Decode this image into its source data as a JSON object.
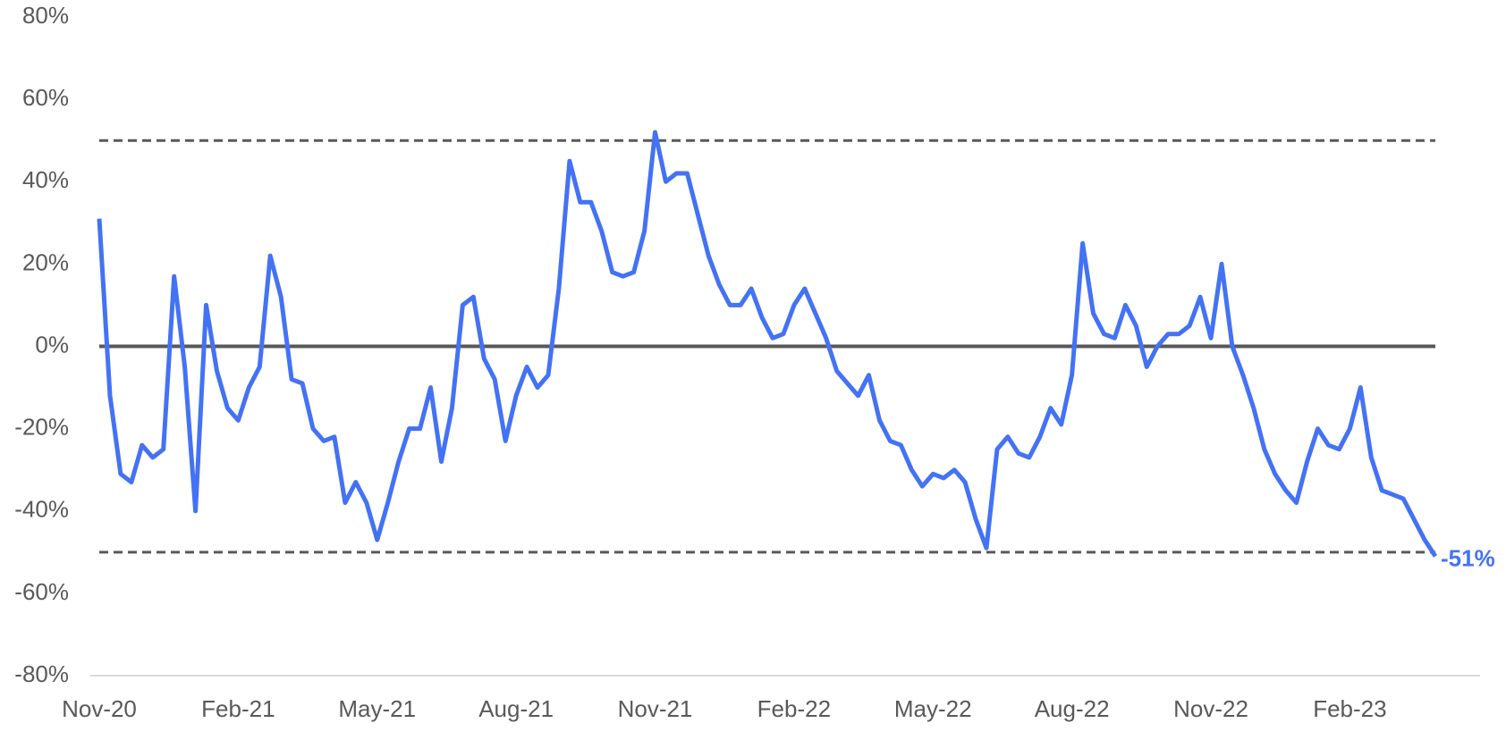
{
  "chart_data": {
    "type": "line",
    "categories": [
      "Nov-20",
      null,
      null,
      null,
      null,
      null,
      null,
      null,
      null,
      null,
      null,
      null,
      null,
      "Feb-21",
      null,
      null,
      null,
      null,
      null,
      null,
      null,
      null,
      null,
      null,
      null,
      null,
      "May-21",
      null,
      null,
      null,
      null,
      null,
      null,
      null,
      null,
      null,
      null,
      null,
      null,
      "Aug-21",
      null,
      null,
      null,
      null,
      null,
      null,
      null,
      null,
      null,
      null,
      null,
      null,
      "Nov-21",
      null,
      null,
      null,
      null,
      null,
      null,
      null,
      null,
      null,
      null,
      null,
      null,
      "Feb-22",
      null,
      null,
      null,
      null,
      null,
      null,
      null,
      null,
      null,
      null,
      null,
      null,
      "May-22",
      null,
      null,
      null,
      null,
      null,
      null,
      null,
      null,
      null,
      null,
      null,
      null,
      "Aug-22",
      null,
      null,
      null,
      null,
      null,
      null,
      null,
      null,
      null,
      null,
      null,
      null,
      "Nov-22",
      null,
      null,
      null,
      null,
      null,
      null,
      null,
      null,
      null,
      null,
      null,
      null,
      "Feb-23",
      null,
      null,
      null,
      null,
      null,
      null,
      null,
      null
    ],
    "values": [
      31,
      -12,
      -31,
      -33,
      -24,
      -27,
      -25,
      17,
      -5,
      -40,
      10,
      -6,
      -15,
      -18,
      -10,
      -5,
      22,
      12,
      -8,
      -9,
      -20,
      -23,
      -22,
      -38,
      -33,
      -38,
      -47,
      -38,
      -28,
      -20,
      -20,
      -10,
      -28,
      -15,
      10,
      12,
      -3,
      -8,
      -23,
      -12,
      -5,
      -10,
      -7,
      14,
      45,
      35,
      35,
      28,
      18,
      17,
      18,
      28,
      52,
      40,
      42,
      42,
      32,
      22,
      15,
      10,
      10,
      14,
      7,
      2,
      3,
      10,
      14,
      8,
      2,
      -6,
      -9,
      -12,
      -7,
      -18,
      -23,
      -24,
      -30,
      -34,
      -31,
      -32,
      -30,
      -33,
      -42,
      -49,
      -25,
      -22,
      -26,
      -27,
      -22,
      -15,
      -19,
      -7,
      25,
      8,
      3,
      2,
      10,
      5,
      -5,
      0,
      3,
      3,
      5,
      12,
      2,
      20,
      0,
      -7,
      -15,
      -25,
      -31,
      -35,
      -38,
      -28,
      -20,
      -24,
      -25,
      -20,
      -10,
      -27,
      -35,
      -36,
      -37,
      -42,
      -47,
      -51
    ],
    "value_labels": [
      null,
      null,
      null,
      null,
      null,
      null,
      null,
      null,
      null,
      null,
      null,
      null,
      null,
      null,
      null,
      null,
      null,
      null,
      null,
      null,
      null,
      null,
      null,
      null,
      null,
      null,
      null,
      null,
      null,
      null,
      null,
      null,
      null,
      null,
      null,
      null,
      null,
      null,
      null,
      null,
      null,
      null,
      null,
      null,
      null,
      null,
      null,
      null,
      null,
      null,
      null,
      null,
      null,
      null,
      null,
      null,
      null,
      null,
      null,
      null,
      null,
      null,
      null,
      null,
      null,
      null,
      null,
      null,
      null,
      null,
      null,
      null,
      null,
      null,
      null,
      null,
      null,
      null,
      null,
      null,
      null,
      null,
      null,
      null,
      null,
      null,
      null,
      null,
      null,
      null,
      null,
      null,
      null,
      null,
      null,
      null,
      null,
      null,
      null,
      null,
      null,
      null,
      null,
      null,
      null,
      null,
      null,
      null,
      null,
      null,
      null,
      null,
      null,
      null,
      null,
      null,
      null,
      null,
      null,
      null,
      null,
      null,
      null,
      null,
      null,
      "-51%"
    ],
    "color": "#4472f4",
    "ylim": [
      -80,
      80
    ],
    "yticks": [
      {
        "value": -80,
        "label": "-80%"
      },
      {
        "value": -60,
        "label": "-60%"
      },
      {
        "value": -40,
        "label": "-40%"
      },
      {
        "value": -20,
        "label": "-20%"
      },
      {
        "value": 0,
        "label": "0%"
      },
      {
        "value": 20,
        "label": "20%"
      },
      {
        "value": 40,
        "label": "40%"
      },
      {
        "value": 60,
        "label": "60%"
      },
      {
        "value": 80,
        "label": "80%"
      }
    ],
    "reference_lines": [
      {
        "value": 50,
        "style": "dashed"
      },
      {
        "value": 0,
        "style": "solid"
      },
      {
        "value": -50,
        "style": "dashed"
      }
    ],
    "grid": false
  }
}
